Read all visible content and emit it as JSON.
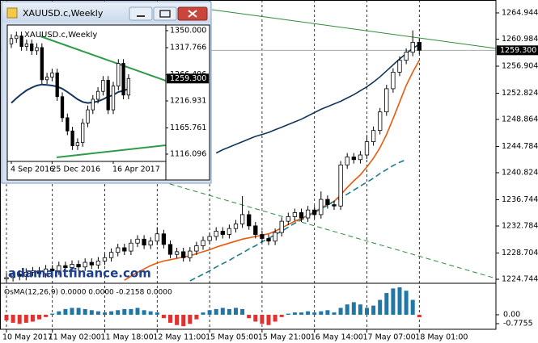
{
  "chart_data": [
    {
      "type": "candlestick",
      "categories": [
        "10 May 2017",
        null,
        null,
        null,
        null,
        null,
        null,
        "11 May 02:00",
        null,
        null,
        null,
        null,
        null,
        null,
        null,
        "11 May 18:00",
        null,
        null,
        null,
        null,
        null,
        null,
        null,
        "12 May 11:00",
        null,
        null,
        null,
        null,
        null,
        null,
        null,
        "15 May 05:00",
        null,
        null,
        null,
        null,
        null,
        null,
        null,
        "15 May 21:00",
        null,
        null,
        null,
        null,
        null,
        null,
        null,
        "16 May 14:00",
        null,
        null,
        null,
        null,
        null,
        null,
        null,
        "17 May 07:00",
        null,
        null,
        null,
        null,
        null,
        null,
        null,
        "18 May 01:00"
      ],
      "open": [
        1224.8,
        1225.0,
        1225.5,
        1225.2,
        1225.8,
        1226.0,
        1225.6,
        1226.3,
        1226.0,
        1226.8,
        1226.5,
        1227.0,
        1226.6,
        1227.3,
        1226.9,
        1227.5,
        1228.0,
        1228.8,
        1229.5,
        1229.0,
        1230.2,
        1230.8,
        1229.9,
        1230.5,
        1231.6,
        1230.0,
        1228.5,
        1228.9,
        1228.0,
        1229.0,
        1229.8,
        1230.6,
        1231.2,
        1232.0,
        1231.5,
        1232.4,
        1233.1,
        1234.5,
        1232.8,
        1231.5,
        1230.9,
        1230.5,
        1231.8,
        1233.5,
        1234.2,
        1234.8,
        1234.0,
        1235.2,
        1234.5,
        1236.8,
        1236.0,
        1235.8,
        1242.0,
        1243.2,
        1242.8,
        1243.5,
        1245.5,
        1247.2,
        1250.0,
        1253.5,
        1256.0,
        1257.8,
        1259.0,
        1260.5
      ],
      "high": [
        1225.6,
        1226.1,
        1226.1,
        1226.4,
        1226.6,
        1226.6,
        1226.9,
        1226.9,
        1227.4,
        1227.4,
        1227.6,
        1227.6,
        1227.9,
        1227.9,
        1228.1,
        1228.6,
        1229.4,
        1230.1,
        1230.1,
        1230.8,
        1231.4,
        1231.4,
        1231.1,
        1232.6,
        1232.2,
        1230.6,
        1229.5,
        1229.5,
        1229.6,
        1230.4,
        1231.2,
        1231.8,
        1232.6,
        1232.6,
        1233.0,
        1233.7,
        1237.3,
        1235.1,
        1233.4,
        1232.1,
        1231.5,
        1232.4,
        1234.1,
        1234.8,
        1235.4,
        1235.4,
        1235.8,
        1235.8,
        1238.0,
        1237.4,
        1236.6,
        1242.6,
        1243.8,
        1243.8,
        1244.1,
        1246.5,
        1247.8,
        1250.6,
        1254.1,
        1256.6,
        1258.4,
        1259.6,
        1262.3,
        1261.1
      ],
      "low": [
        1224.4,
        1224.4,
        1224.6,
        1224.6,
        1225.2,
        1225.0,
        1225.0,
        1225.4,
        1225.4,
        1225.9,
        1225.9,
        1226.0,
        1226.0,
        1226.3,
        1226.3,
        1226.9,
        1227.4,
        1228.2,
        1228.4,
        1228.4,
        1229.6,
        1229.3,
        1229.3,
        1229.9,
        1229.4,
        1227.9,
        1227.9,
        1227.4,
        1227.4,
        1228.4,
        1229.2,
        1230.0,
        1230.6,
        1230.9,
        1230.9,
        1231.8,
        1232.5,
        1232.2,
        1230.9,
        1230.3,
        1229.9,
        1229.9,
        1231.2,
        1232.9,
        1233.6,
        1233.4,
        1233.4,
        1233.9,
        1233.9,
        1235.4,
        1235.2,
        1235.2,
        1241.4,
        1242.2,
        1242.2,
        1242.9,
        1244.9,
        1246.6,
        1249.4,
        1252.9,
        1255.4,
        1257.2,
        1258.4,
        1258.7
      ],
      "close": [
        1225.0,
        1225.5,
        1225.2,
        1225.8,
        1226.0,
        1225.6,
        1226.3,
        1226.0,
        1226.8,
        1226.5,
        1227.0,
        1226.6,
        1227.3,
        1226.9,
        1227.5,
        1228.0,
        1228.8,
        1229.5,
        1229.0,
        1230.2,
        1230.8,
        1229.9,
        1230.5,
        1231.6,
        1230.0,
        1228.5,
        1228.9,
        1228.0,
        1229.0,
        1229.8,
        1230.6,
        1231.2,
        1232.0,
        1231.5,
        1232.4,
        1233.1,
        1234.5,
        1232.8,
        1231.5,
        1230.9,
        1230.5,
        1231.8,
        1233.5,
        1234.2,
        1234.8,
        1234.0,
        1235.2,
        1234.5,
        1236.8,
        1236.0,
        1235.8,
        1242.0,
        1243.2,
        1242.8,
        1243.5,
        1245.5,
        1247.2,
        1250.0,
        1253.5,
        1256.0,
        1257.8,
        1259.0,
        1260.5,
        1259.3
      ],
      "overlays": [
        {
          "color": "#e8590c",
          "dashed": false,
          "values": [
            null,
            null,
            null,
            null,
            null,
            null,
            null,
            null,
            null,
            null,
            null,
            null,
            null,
            null,
            null,
            null,
            null,
            null,
            1224.6,
            1225.2,
            1225.8,
            1226.3,
            1226.8,
            1227.2,
            1227.5,
            1227.7,
            1227.9,
            1228.1,
            1228.3,
            1228.6,
            1228.9,
            1229.2,
            1229.6,
            1229.9,
            1230.2,
            1230.5,
            1230.8,
            1231.0,
            1231.2,
            1231.4,
            1231.6,
            1232.0,
            1232.5,
            1233.0,
            1233.5,
            1233.9,
            1234.4,
            1234.9,
            1235.5,
            1236.0,
            1236.5,
            1237.5,
            1238.6,
            1239.6,
            1240.5,
            1241.7,
            1243.0,
            1244.6,
            1246.6,
            1249.0,
            1251.5,
            1254.0,
            1256.0,
            1257.8
          ]
        },
        {
          "color": "#12355b",
          "dashed": false,
          "values": [
            null,
            null,
            null,
            null,
            null,
            null,
            null,
            null,
            null,
            null,
            null,
            null,
            null,
            null,
            null,
            null,
            null,
            null,
            null,
            null,
            null,
            null,
            null,
            null,
            null,
            null,
            null,
            null,
            null,
            null,
            null,
            null,
            1243.8,
            1244.3,
            1244.7,
            1245.1,
            1245.5,
            1245.9,
            1246.3,
            1246.6,
            1246.9,
            1247.3,
            1247.7,
            1248.1,
            1248.5,
            1248.9,
            1249.4,
            1249.9,
            1250.4,
            1250.8,
            1251.2,
            1251.6,
            1252.1,
            1252.6,
            1253.2,
            1253.8,
            1254.5,
            1255.3,
            1256.2,
            1257.1,
            1258.0,
            1258.8,
            1259.6,
            1260.2
          ]
        },
        {
          "color": "#1c7a8c",
          "dashed": true,
          "values": [
            null,
            null,
            null,
            null,
            null,
            null,
            null,
            null,
            null,
            null,
            null,
            null,
            null,
            null,
            null,
            null,
            null,
            null,
            null,
            null,
            null,
            null,
            null,
            null,
            null,
            null,
            null,
            null,
            1224.5,
            1225.0,
            1225.5,
            1226.0,
            1226.6,
            1227.1,
            1227.6,
            1228.2,
            1228.7,
            1229.3,
            1229.8,
            1230.4,
            1230.9,
            1231.5,
            1232.0,
            1232.6,
            1233.2,
            1233.7,
            1234.3,
            1234.8,
            1235.4,
            1235.9,
            1236.5,
            1237.0,
            1237.6,
            1238.2,
            1238.8,
            1239.4,
            1240.0,
            1240.7,
            1241.3,
            1241.9,
            1242.4,
            1242.8,
            null,
            null
          ]
        }
      ],
      "ylim": [
        1224.26,
        1266.89
      ],
      "yticks": [
        1264.944,
        1260.984,
        1256.904,
        1252.824,
        1248.864,
        1244.784,
        1240.824,
        1236.744,
        1232.784,
        1228.704,
        1224.744
      ],
      "last_price": {
        "value": 1259.3,
        "label": "1259.300"
      },
      "watermark": "adamantfinance.com",
      "grid": true
    },
    {
      "type": "histogram",
      "title": "OsMA(12,26,9) 0.0000 0.0000 -0.2158 0.0000",
      "values": [
        -0.5,
        -0.7,
        -0.8,
        -0.7,
        -0.6,
        -0.4,
        -0.2,
        0.1,
        0.3,
        0.5,
        0.6,
        0.6,
        0.5,
        0.4,
        0.3,
        0.2,
        0.3,
        0.4,
        0.5,
        0.5,
        0.6,
        0.4,
        0.3,
        0.2,
        -0.3,
        -0.7,
        -0.9,
        -1.0,
        -0.8,
        -0.4,
        0.2,
        0.4,
        0.5,
        0.6,
        0.5,
        0.6,
        0.5,
        -0.3,
        -0.6,
        -0.8,
        -0.9,
        -0.6,
        -0.2,
        0.1,
        0.2,
        0.2,
        0.3,
        0.2,
        0.3,
        0.4,
        0.2,
        0.6,
        0.9,
        1.1,
        0.9,
        0.6,
        0.8,
        1.3,
        1.9,
        2.3,
        2.4,
        2.1,
        1.3,
        -0.2158
      ],
      "colors": {
        "up": "#1f77a8",
        "down": "#e03030"
      },
      "ylim": [
        -1.27,
        2.68
      ],
      "yticks": [
        {
          "value": 0,
          "label": "0.00"
        },
        -0.7755
      ]
    },
    {
      "type": "candlestick",
      "title": "XAUUSD.c,Weekly",
      "categories": [
        "4 Sep 2016",
        null,
        null,
        null,
        null,
        null,
        null,
        null,
        "25 Dec 2016",
        null,
        null,
        null,
        null,
        null,
        null,
        null,
        null,
        null,
        null,
        null,
        "16 Apr 2017",
        null,
        null,
        null
      ],
      "open": [
        1325,
        1335,
        1340,
        1320,
        1325,
        1312,
        1318,
        1257,
        1262,
        1270,
        1225,
        1185,
        1160,
        1132,
        1138,
        1175,
        1200,
        1220,
        1235,
        1256,
        1200,
        1245,
        1288,
        1228
      ],
      "high": [
        1343,
        1348,
        1348,
        1333,
        1333,
        1326,
        1326,
        1270,
        1278,
        1278,
        1233,
        1193,
        1168,
        1146,
        1183,
        1208,
        1228,
        1243,
        1264,
        1264,
        1253,
        1296,
        1296,
        1267.3
      ],
      "low": [
        1317,
        1327,
        1312,
        1312,
        1304,
        1304,
        1249,
        1249,
        1254,
        1217,
        1177,
        1152,
        1124,
        1124,
        1130,
        1167,
        1192,
        1212,
        1227,
        1192,
        1192,
        1237,
        1220,
        1220
      ],
      "close": [
        1335,
        1340,
        1320,
        1325,
        1312,
        1318,
        1257,
        1262,
        1270,
        1225,
        1185,
        1160,
        1132,
        1138,
        1175,
        1200,
        1220,
        1235,
        1256,
        1200,
        1245,
        1288,
        1228,
        1259.3
      ],
      "overlays": [
        {
          "color": "#12355b",
          "dashed": false,
          "values": [
            1213,
            1222,
            1230,
            1237,
            1242,
            1246,
            1248,
            1247,
            1246,
            1244,
            1240,
            1234,
            1227,
            1220,
            1215,
            1213,
            1214,
            1216,
            1220,
            1225,
            1228,
            1234,
            1236,
            1240
          ]
        }
      ],
      "ylim": [
        1102.3,
        1357.6
      ],
      "yticks": [
        {
          "value": 1350,
          "label": "1350.000"
        },
        1317.766,
        1266.496,
        1216.931,
        1165.761,
        1116.096
      ],
      "last_price": {
        "value": 1259.3,
        "label": "1259.300"
      }
    }
  ]
}
